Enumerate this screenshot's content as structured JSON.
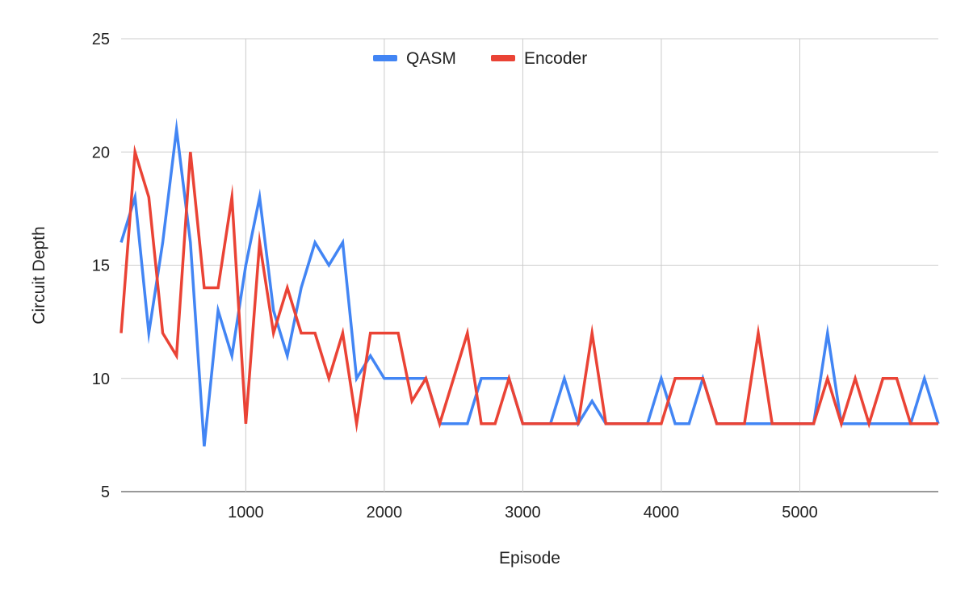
{
  "chart_data": {
    "type": "line",
    "title": "",
    "xlabel": "Episode",
    "ylabel": "Circuit Depth",
    "xlim": [
      100,
      6000
    ],
    "ylim": [
      5,
      25
    ],
    "x_ticks": [
      1000,
      2000,
      3000,
      4000,
      5000
    ],
    "y_ticks": [
      5,
      10,
      15,
      20,
      25
    ],
    "grid": true,
    "legend_position": "top-center",
    "x": [
      100,
      200,
      300,
      400,
      500,
      600,
      700,
      800,
      900,
      1000,
      1100,
      1200,
      1300,
      1400,
      1500,
      1600,
      1700,
      1800,
      1900,
      2000,
      2100,
      2200,
      2300,
      2400,
      2500,
      2600,
      2700,
      2800,
      2900,
      3000,
      3100,
      3200,
      3300,
      3400,
      3500,
      3600,
      3700,
      3800,
      3900,
      4000,
      4100,
      4200,
      4300,
      4400,
      4500,
      4600,
      4700,
      4800,
      4900,
      5000,
      5100,
      5200,
      5300,
      5400,
      5500,
      5600,
      5700,
      5800,
      5900,
      6000
    ],
    "series": [
      {
        "name": "QASM",
        "color": "#4285f4",
        "values": [
          16,
          18,
          12,
          16,
          21,
          16,
          7,
          13,
          11,
          15,
          18,
          13,
          11,
          14,
          16,
          15,
          16,
          10,
          11,
          10,
          10,
          10,
          10,
          8,
          8,
          8,
          10,
          10,
          10,
          8,
          8,
          8,
          10,
          8,
          9,
          8,
          8,
          8,
          8,
          10,
          8,
          8,
          10,
          8,
          8,
          8,
          8,
          8,
          8,
          8,
          8,
          12,
          8,
          8,
          8,
          8,
          8,
          8,
          10,
          8
        ]
      },
      {
        "name": "Encoder",
        "color": "#ea4335",
        "values": [
          12,
          20,
          18,
          12,
          11,
          20,
          14,
          14,
          18,
          8,
          16,
          12,
          14,
          12,
          12,
          10,
          12,
          8,
          12,
          12,
          12,
          9,
          10,
          8,
          10,
          12,
          8,
          8,
          10,
          8,
          8,
          8,
          8,
          8,
          12,
          8,
          8,
          8,
          8,
          8,
          10,
          10,
          10,
          8,
          8,
          8,
          12,
          8,
          8,
          8,
          8,
          10,
          8,
          10,
          8,
          10,
          10,
          8,
          8,
          8
        ]
      }
    ]
  }
}
